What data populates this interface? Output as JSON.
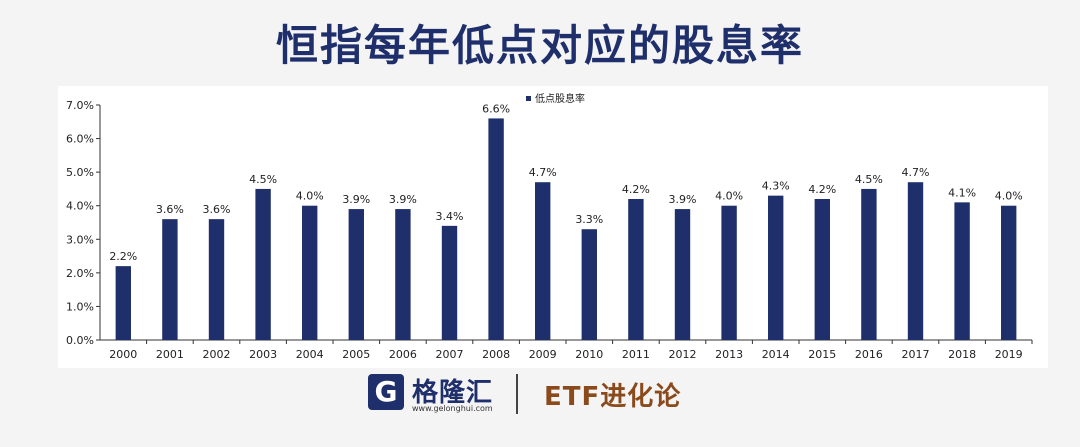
{
  "title": "恒指每年低点对应的股息率",
  "footer": {
    "logo_mark": "G",
    "logo_name": "格隆汇",
    "logo_url": "www.gelonghui.com",
    "brand2": "ETF进化论"
  },
  "chart_data": {
    "type": "bar",
    "title": "恒指每年低点对应的股息率",
    "categories": [
      "2000",
      "2001",
      "2002",
      "2003",
      "2004",
      "2005",
      "2006",
      "2007",
      "2008",
      "2009",
      "2010",
      "2011",
      "2012",
      "2013",
      "2014",
      "2015",
      "2016",
      "2017",
      "2018",
      "2019"
    ],
    "series": [
      {
        "name": "低点股息率",
        "values": [
          2.2,
          3.6,
          3.6,
          4.5,
          4.0,
          3.9,
          3.9,
          3.4,
          6.6,
          4.7,
          3.3,
          4.2,
          3.9,
          4.0,
          4.3,
          4.2,
          4.5,
          4.7,
          4.1,
          4.0
        ]
      }
    ],
    "data_labels": [
      "2.2%",
      "3.6%",
      "3.6%",
      "4.5%",
      "4.0%",
      "3.9%",
      "3.9%",
      "3.4%",
      "6.6%",
      "4.7%",
      "3.3%",
      "4.2%",
      "3.9%",
      "4.0%",
      "4.3%",
      "4.2%",
      "4.5%",
      "4.7%",
      "4.1%",
      "4.0%"
    ],
    "y_ticks": [
      "0.0%",
      "1.0%",
      "2.0%",
      "3.0%",
      "4.0%",
      "5.0%",
      "6.0%",
      "7.0%"
    ],
    "ylim": [
      0,
      7
    ],
    "xlabel": "",
    "ylabel": "",
    "legend": "top-left",
    "grid": false,
    "bar_color": "#1f2f6b"
  }
}
